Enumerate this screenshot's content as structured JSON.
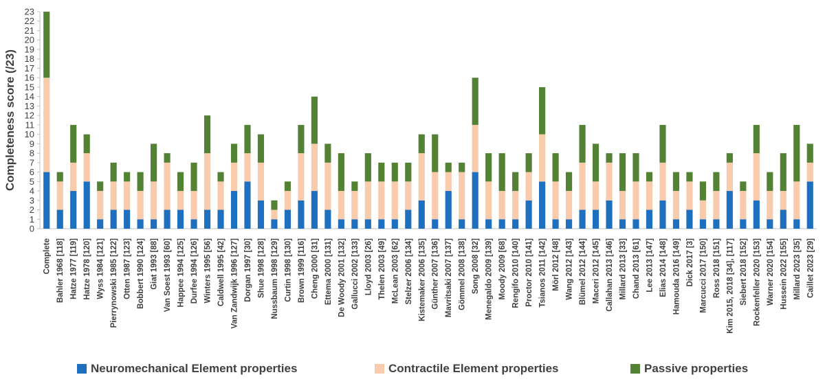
{
  "chart_data": {
    "type": "bar",
    "stacked": true,
    "title": "",
    "xlabel": "",
    "ylabel": "Completeness score (/23)",
    "ylim": [
      0,
      23
    ],
    "ytick_step": 1,
    "grid": false,
    "legend_position": "bottom",
    "categories": [
      "Complete",
      "Bahler 1968 [118]",
      "Hatze 1977 [119]",
      "Hatze 1978 [120]",
      "Wyss 1984 [121]",
      "Pierrynowski 1985 [122]",
      "Otten 1987 [123]",
      "Bobbert 1990 [124]",
      "Giat 1993 [88]",
      "Van Soest 1993 [60]",
      "Happee 1994 [125]",
      "Durfee 1994 [126]",
      "Winters 1995 [56]",
      "Caldwell 1995 [42]",
      "Van Zandwijk 1996 [127]",
      "Dorgan 1997 [30]",
      "Shue 1998 [128]",
      "Nussbaum 1998 [129]",
      "Curtin 1998 [130]",
      "Brown 1999 [116]",
      "Cheng 2000 [31]",
      "Ettema 2000 [131]",
      "De Woody 2001 [132]",
      "Gallucci 2002 [133]",
      "Lloyd 2003 [26]",
      "Thelen 2003 [49]",
      "McLean 2003 [62]",
      "Stelzer 2006 [134]",
      "Kistemaker 2006 [135]",
      "Günther 2007 [136]",
      "Mavritsaki 2007 [137]",
      "Gömmel 2008 [138]",
      "Song 2008 [32]",
      "Menegaldo 2009 [139]",
      "Moody 2009 [68]",
      "Rengifo 2010 [140]",
      "Proctor 2010 [141]",
      "Tsianos 2011 [142]",
      "Mörl 2012 [48]",
      "Wang 2012 [143]",
      "Blümel 2012 [144]",
      "Maceri 2012 [145]",
      "Callahan 2013 [146]",
      "Millard 2013 [33]",
      "Chand 2013 [61]",
      "Lee 2013 [147]",
      "Elias 2014 [148]",
      "Hamouda 2016 [149]",
      "Dick 2017 [3]",
      "Marcucci 2017 [150]",
      "Ross 2018 [151]",
      "Kim 2015, 2018 [34], [117]",
      "Siebert 2018 [152]",
      "Rockenfeller 2020 [153]",
      "Warner 2020 [154]",
      "Hussein 2022 [155]",
      "Millard 2023 [35]",
      "Caillet 2023 [29]"
    ],
    "series": [
      {
        "name": "Neuromechanical Element properties",
        "color": "#1f6fbf",
        "values": [
          6,
          2,
          4,
          5,
          1,
          2,
          2,
          1,
          1,
          2,
          2,
          1,
          2,
          2,
          4,
          5,
          3,
          1,
          2,
          3,
          4,
          2,
          1,
          1,
          1,
          1,
          1,
          2,
          3,
          1,
          4,
          1,
          6,
          1,
          1,
          1,
          3,
          5,
          1,
          1,
          2,
          2,
          3,
          1,
          1,
          2,
          3,
          1,
          2,
          1,
          1,
          4,
          1,
          3,
          1,
          2,
          1,
          5
        ]
      },
      {
        "name": "Contractile Element properties",
        "color": "#f8cbad",
        "values": [
          10,
          3,
          3,
          3,
          3,
          3,
          3,
          3,
          4,
          5,
          2,
          3,
          6,
          3,
          3,
          3,
          4,
          1,
          2,
          5,
          5,
          5,
          3,
          3,
          4,
          4,
          4,
          3,
          5,
          5,
          2,
          5,
          5,
          4,
          3,
          3,
          3,
          5,
          4,
          3,
          5,
          3,
          4,
          3,
          4,
          3,
          4,
          3,
          3,
          2,
          3,
          3,
          3,
          5,
          3,
          2,
          4,
          2
        ]
      },
      {
        "name": "Passive properties",
        "color": "#548235",
        "values": [
          7,
          1,
          4,
          2,
          1,
          2,
          1,
          2,
          4,
          1,
          2,
          3,
          4,
          1,
          2,
          3,
          3,
          1,
          1,
          3,
          5,
          2,
          4,
          1,
          3,
          2,
          2,
          2,
          2,
          4,
          1,
          1,
          5,
          3,
          4,
          2,
          2,
          5,
          3,
          2,
          4,
          4,
          1,
          4,
          3,
          1,
          4,
          2,
          1,
          2,
          2,
          1,
          1,
          3,
          2,
          4,
          6,
          2
        ]
      }
    ]
  }
}
